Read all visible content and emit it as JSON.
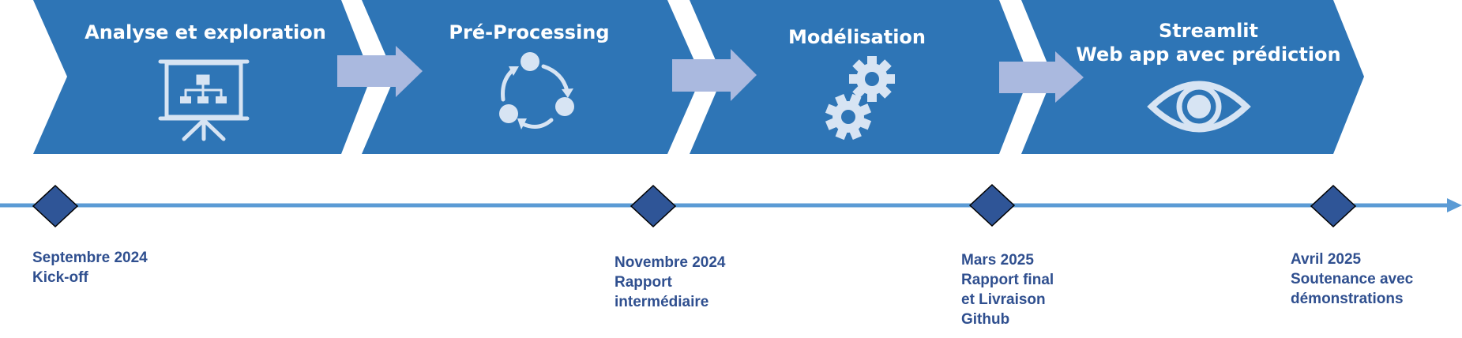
{
  "colors": {
    "chevron": "#2e75b6",
    "arrow": "#aab9df",
    "icon": "#d7e4f3",
    "timeline": "#5b9bd5",
    "diamond": "#2f5597",
    "milestone_text": "#2f4f8f"
  },
  "phases": [
    {
      "title": "Analyse et exploration",
      "icon": "presentation-board-icon"
    },
    {
      "title": "Pré-Processing",
      "icon": "cycle-icon"
    },
    {
      "title": "Modélisation",
      "icon": "gears-icon"
    },
    {
      "title_line1": "Streamlit",
      "title_line2": "Web app avec prédiction",
      "icon": "eye-icon"
    }
  ],
  "milestones": [
    {
      "date": "Septembre 2024",
      "lines": [
        "Kick-off"
      ]
    },
    {
      "date": "Novembre 2024",
      "lines": [
        "Rapport",
        "intermédiaire"
      ]
    },
    {
      "date": "Mars 2025",
      "lines": [
        "Rapport final",
        "et Livraison",
        "Github"
      ]
    },
    {
      "date": "Avril 2025",
      "lines": [
        "Soutenance avec",
        "démonstrations"
      ]
    }
  ]
}
